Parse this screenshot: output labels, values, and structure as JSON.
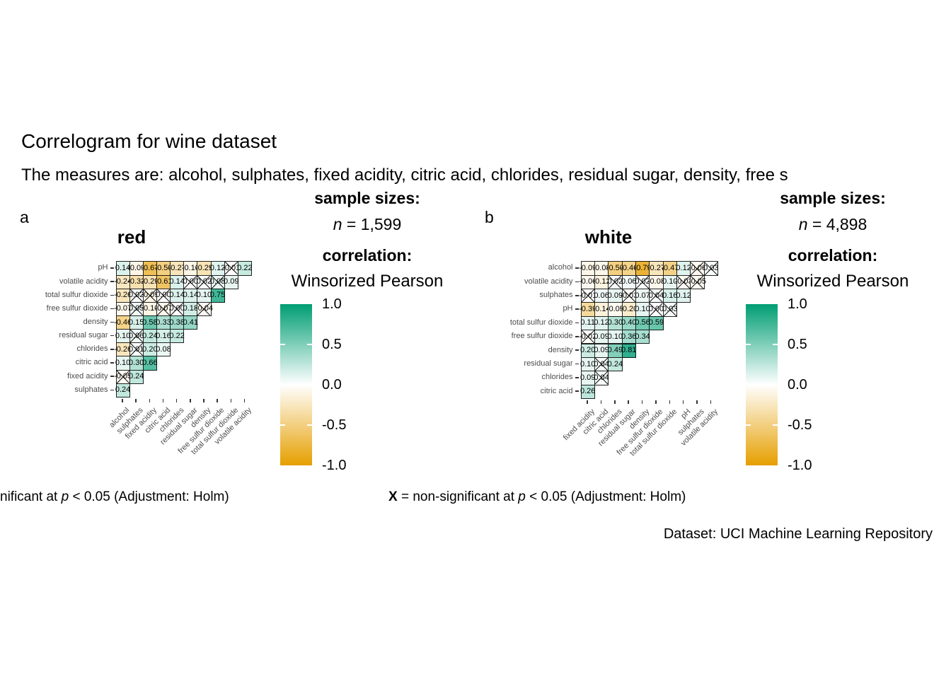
{
  "page": {
    "title": "Correlogram for wine dataset",
    "subtitle": "The measures are: alcohol, sulphates, fixed acidity, citric acid, chlorides, residual sugar, density, free s",
    "dataset_caption": "Dataset: UCI Machine Learning Repository"
  },
  "captions": {
    "left": {
      "prefix": "nificant at ",
      "p_symbol": "p",
      "suffix": " < 0.05 (Adjustment: Holm)"
    },
    "middle": {
      "x_symbol": "X",
      "text": " = non-significant at ",
      "p_symbol": "p",
      "suffix": " < 0.05 (Adjustment: Holm)"
    }
  },
  "legends": {
    "left": {
      "sample_sizes_label": "sample sizes:",
      "n_symbol": "n",
      "n_value": " = 1,599",
      "correlation_label": "correlation:",
      "method": "Winsorized Pearson",
      "ticks": [
        "1.0",
        "0.5",
        "0.0",
        "-0.5",
        "-1.0"
      ]
    },
    "right": {
      "sample_sizes_label": "sample sizes:",
      "n_symbol": "n",
      "n_value": " = 4,898",
      "correlation_label": "correlation:",
      "method": "Winsorized Pearson",
      "ticks": [
        "1.0",
        "0.5",
        "0.0",
        "-0.5",
        "-1.0"
      ]
    }
  },
  "colors": {
    "positive_end": "#009E73",
    "midpoint": "#FFFFFF",
    "negative_end": "#E69F00",
    "axis_text": "#4D4D4D"
  },
  "chart_data": [
    {
      "type": "heatmap",
      "tag": "a",
      "title": "red",
      "sample_size": "1,599",
      "method": "Winsorized Pearson",
      "value_range": [
        -1,
        1
      ],
      "x_labels": [
        "alcohol",
        "sulphates",
        "fixed acidity",
        "citric acid",
        "chlorides",
        "residual sugar",
        "density",
        "free sulfur dioxide",
        "total sulfur dioxide",
        "volatile acidity"
      ],
      "y_labels": [
        "pH",
        "volatile acidity",
        "total sulfur dioxide",
        "free sulfur dioxide",
        "density",
        "residual sugar",
        "chlorides",
        "citric acid",
        "fixed acidity",
        "sulphates"
      ],
      "values": [
        [
          0.14,
          -0.09,
          -0.67,
          -0.5,
          -0.27,
          -0.1,
          -0.29,
          0.12,
          -0.01,
          0.22
        ],
        [
          -0.24,
          -0.32,
          -0.29,
          -0.61,
          0.14,
          0.0,
          0.02,
          0.08,
          0.09
        ],
        [
          -0.26,
          0.02,
          -0.09,
          0.0,
          0.14,
          0.14,
          0.1,
          0.75
        ],
        [
          -0.07,
          0.05,
          -0.1,
          -0.07,
          0.0,
          0.18,
          -0.04
        ],
        [
          -0.46,
          0.15,
          0.58,
          0.33,
          0.38,
          0.41
        ],
        [
          0.1,
          0.06,
          0.24,
          0.16,
          0.22
        ],
        [
          -0.26,
          0.01,
          0.2,
          0.08
        ],
        [
          0.1,
          0.3,
          0.66
        ],
        [
          -0.05,
          0.24
        ],
        [
          0.24
        ]
      ],
      "nonsig_cols_by_row": [
        [
          8
        ],
        [
          5,
          6,
          7
        ],
        [
          1,
          2,
          3
        ],
        [
          1,
          3,
          4,
          6
        ],
        [],
        [
          1
        ],
        [
          1
        ],
        [],
        [
          0
        ],
        []
      ]
    },
    {
      "type": "heatmap",
      "tag": "b",
      "title": "white",
      "sample_size": "4,898",
      "method": "Winsorized Pearson",
      "value_range": [
        -1,
        1
      ],
      "x_labels": [
        "fixed acidity",
        "citric acid",
        "chlorides",
        "residual sugar",
        "density",
        "free sulfur dioxide",
        "total sulfur dioxide",
        "pH",
        "sulphates",
        "volatile acidity"
      ],
      "y_labels": [
        "alcohol",
        "volatile acidity",
        "sulphates",
        "pH",
        "total sulfur dioxide",
        "free sulfur dioxide",
        "density",
        "residual sugar",
        "chlorides",
        "citric acid"
      ],
      "values": [
        [
          -0.09,
          -0.08,
          -0.5,
          -0.46,
          -0.79,
          -0.27,
          -0.47,
          0.12,
          -0.06,
          0.03
        ],
        [
          -0.06,
          -0.12,
          0.02,
          0.06,
          0.02,
          -0.08,
          0.1,
          -0.03,
          -0.05
        ],
        [
          -0.01,
          0.06,
          0.09,
          -0.03,
          0.07,
          0.04,
          0.16,
          0.12
        ],
        [
          -0.39,
          -0.14,
          -0.05,
          -0.2,
          0.1,
          0.0,
          0.03
        ],
        [
          0.11,
          0.12,
          0.3,
          0.4,
          0.56,
          0.59
        ],
        [
          -0.02,
          0.09,
          0.1,
          0.36,
          0.34
        ],
        [
          0.2,
          0.09,
          0.49,
          0.81
        ],
        [
          0.1,
          0.04,
          0.24
        ],
        [
          0.09,
          0.04
        ],
        [
          0.26
        ]
      ],
      "nonsig_cols_by_row": [
        [
          8,
          9
        ],
        [
          2,
          4,
          7,
          8
        ],
        [
          0,
          3,
          5
        ],
        [
          5,
          6
        ],
        [],
        [
          0
        ],
        [],
        [
          1
        ],
        [
          1
        ],
        []
      ]
    }
  ]
}
